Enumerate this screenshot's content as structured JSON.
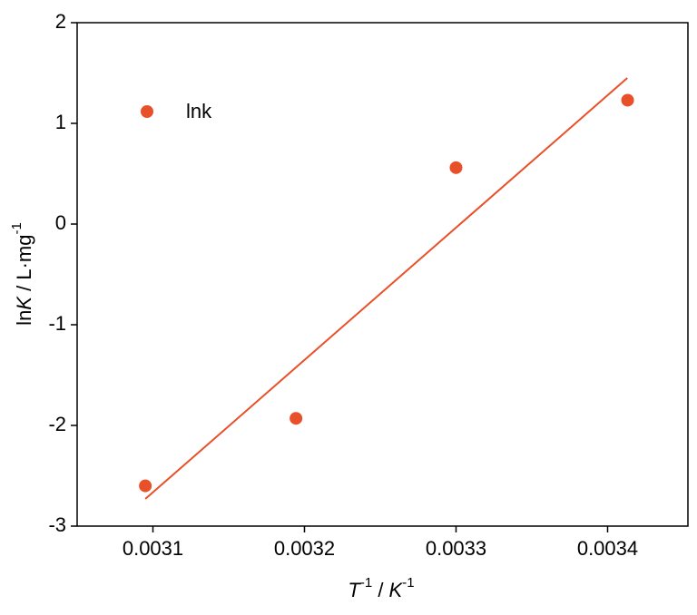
{
  "chart_data": {
    "type": "scatter",
    "ylabel": [
      "ln",
      "K",
      " / L·mg",
      "-1"
    ],
    "xlabel": [
      "T",
      "-1",
      " / ",
      "K",
      "-1"
    ],
    "series": [
      {
        "name": "lnk",
        "color": "#e8502a",
        "x": [
          0.003095,
          0.0031944,
          0.0033,
          0.0034132
        ],
        "values": [
          -2.6,
          -1.93,
          0.56,
          1.23
        ]
      }
    ],
    "fit_line": {
      "color": "#e8502a",
      "x": [
        0.003095,
        0.003413
      ],
      "values": [
        -2.73,
        1.45
      ]
    },
    "xlim": [
      0.00305,
      0.003453
    ],
    "ylim": [
      -3,
      2
    ],
    "xticks": [
      0.0031,
      0.0032,
      0.0033,
      0.0034
    ],
    "yticks": [
      -3,
      -2,
      -1,
      0,
      1,
      2
    ]
  }
}
